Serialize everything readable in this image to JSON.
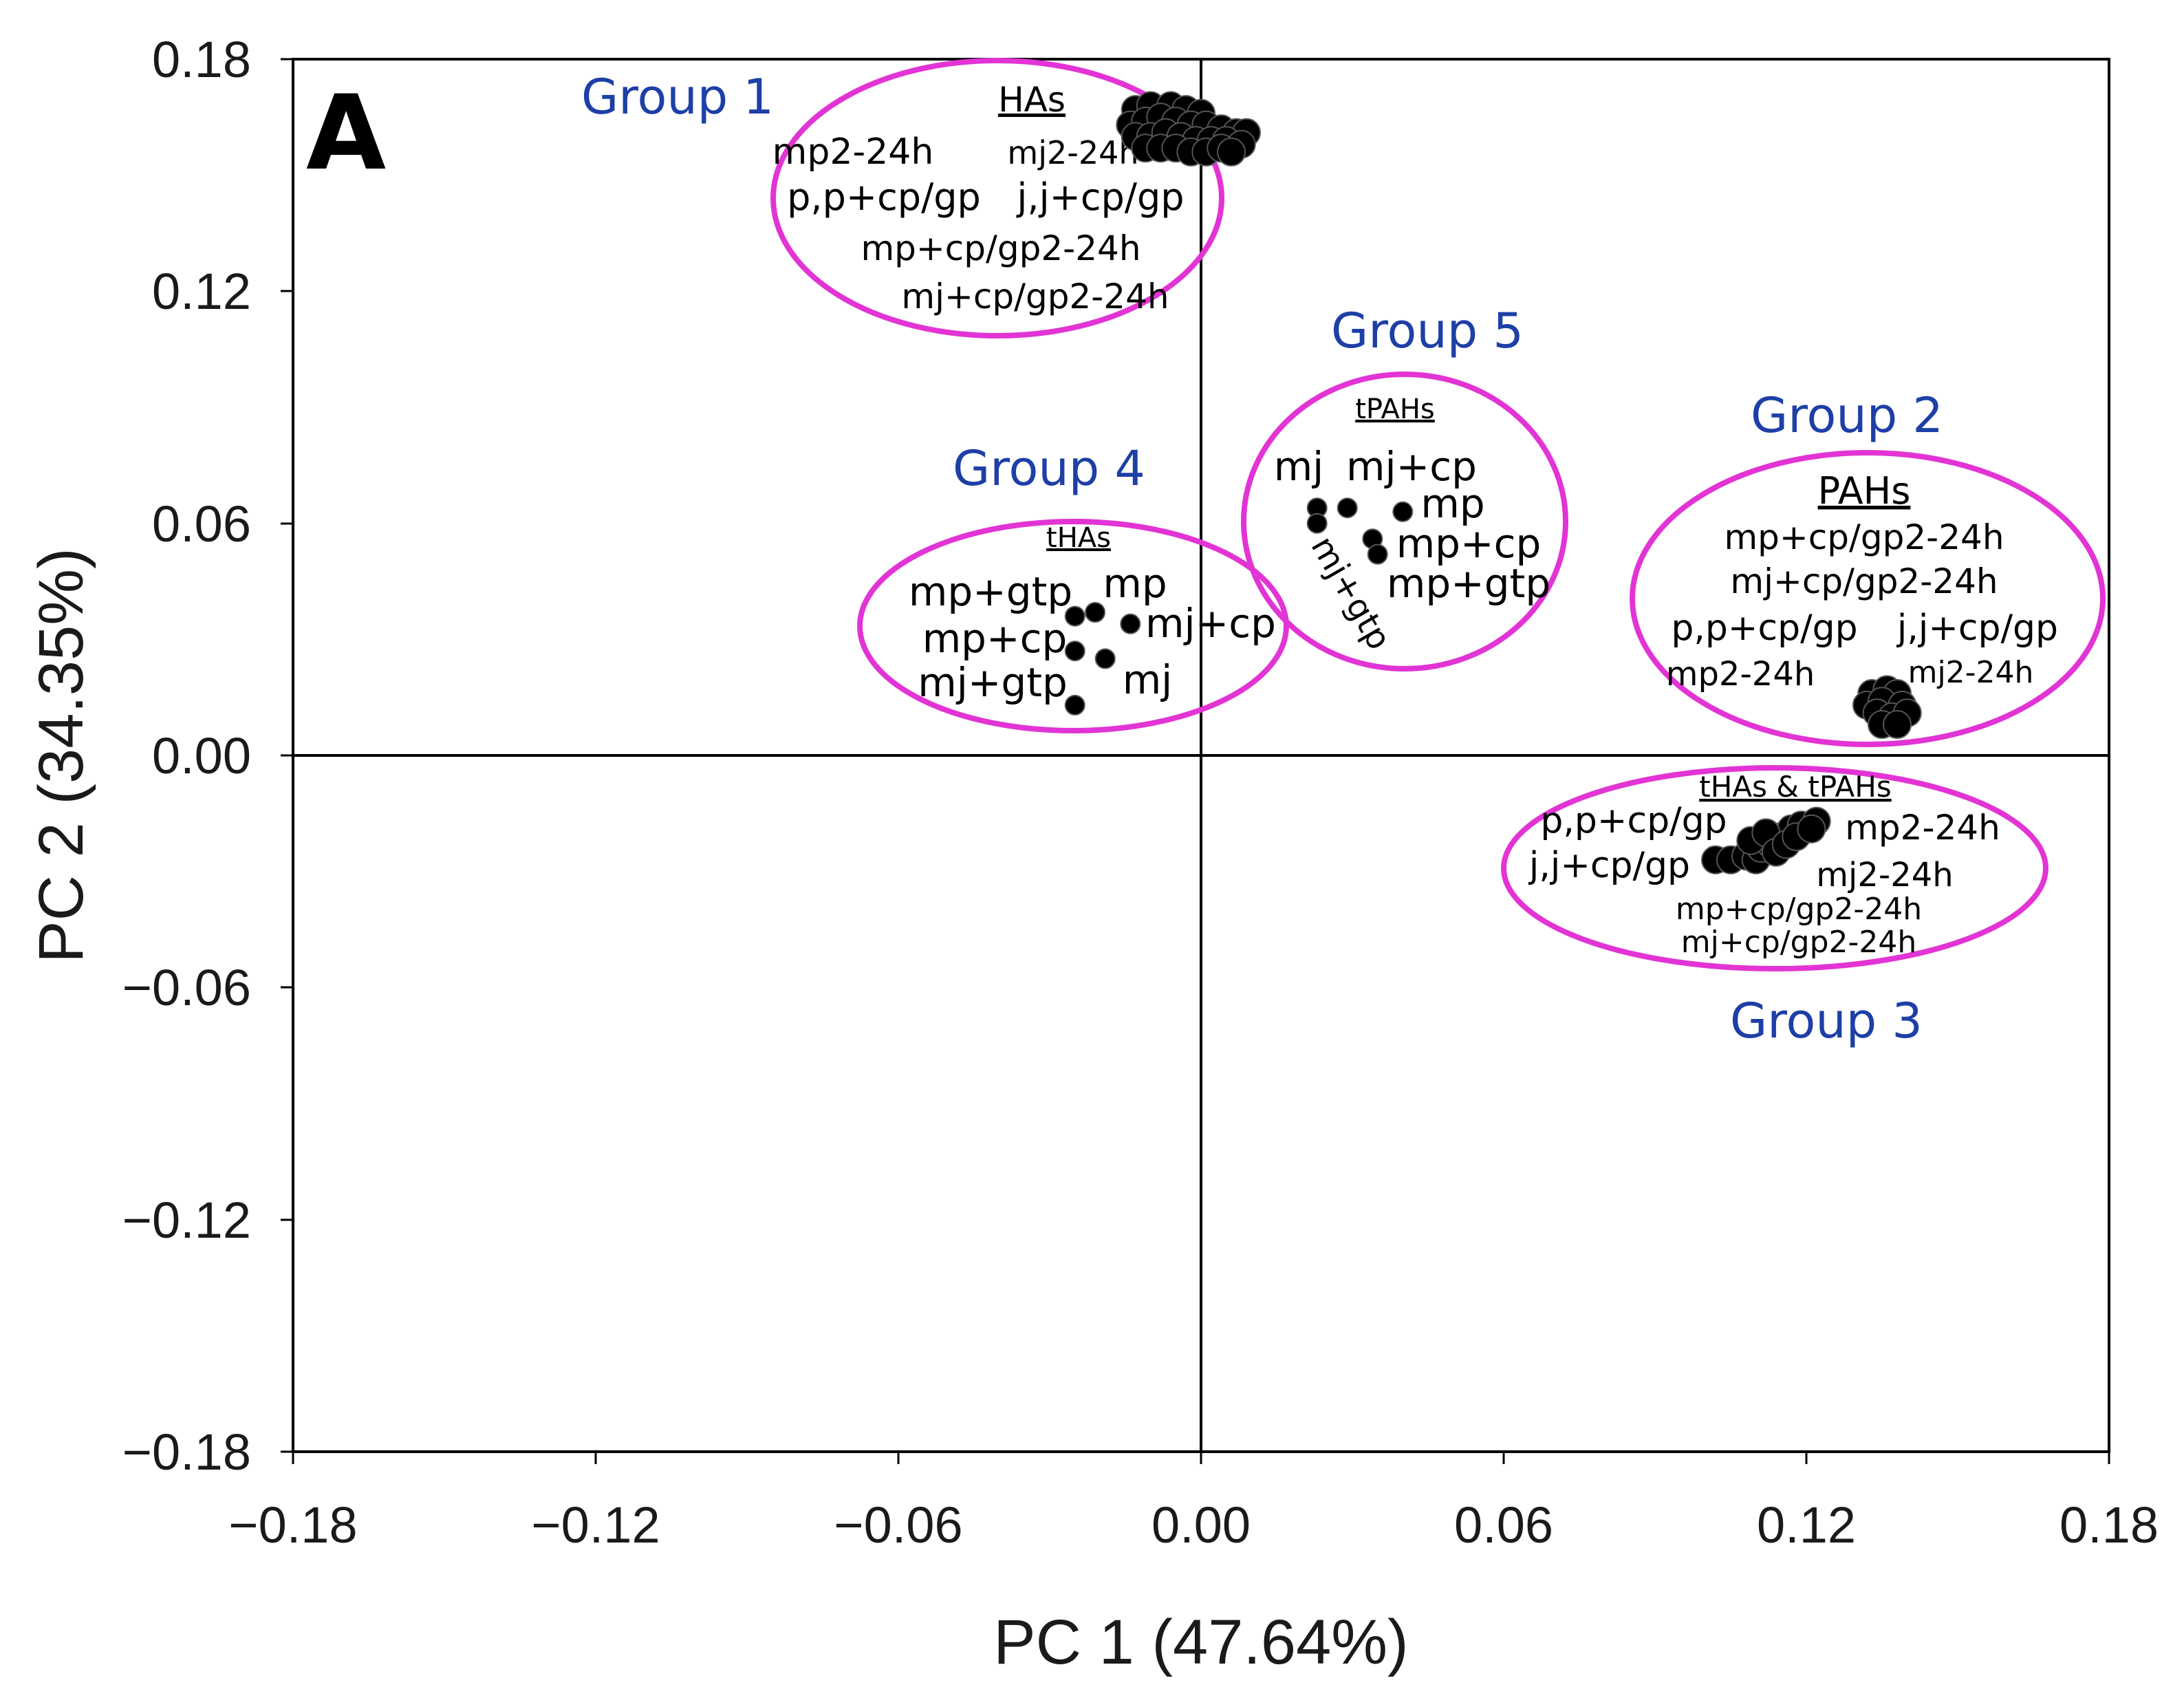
{
  "colors": {
    "ellipse": "#e234d4",
    "group_title": "#1d3fa6",
    "point": "#000000",
    "axis": "#000000"
  },
  "chart_data": {
    "type": "scatter",
    "panel_label": "A",
    "xlabel": "PC 1 (47.64%)",
    "ylabel": "PC 2 (34.35%)",
    "xlim": [
      -0.18,
      0.18
    ],
    "ylim": [
      -0.18,
      0.18
    ],
    "xticks": [
      "-0.18",
      "-0.12",
      "-0.06",
      "0.00",
      "0.06",
      "0.12",
      "0.18"
    ],
    "yticks": [
      "0.18",
      "0.12",
      "0.06",
      "0.00",
      "-0.06",
      "-0.12",
      "-0.18"
    ],
    "grid": false,
    "zero_lines": true,
    "groups": [
      {
        "title": "Group 1",
        "compound_class": "HAs",
        "labels": [
          "mp2-24h",
          "mj2-24h",
          "p,p+cp/gp",
          "j,j+cp/gp",
          "mp+cp/gp2-24h",
          "mj+cp/gp2-24h"
        ],
        "points": [
          [
            -0.013,
            0.167
          ],
          [
            -0.01,
            0.168
          ],
          [
            -0.006,
            0.168
          ],
          [
            -0.003,
            0.167
          ],
          [
            0.0,
            0.166
          ],
          [
            -0.014,
            0.163
          ],
          [
            -0.011,
            0.164
          ],
          [
            -0.008,
            0.165
          ],
          [
            -0.005,
            0.164
          ],
          [
            -0.002,
            0.163
          ],
          [
            0.001,
            0.163
          ],
          [
            0.004,
            0.162
          ],
          [
            0.007,
            0.161
          ],
          [
            0.009,
            0.161
          ],
          [
            -0.013,
            0.16
          ],
          [
            -0.01,
            0.16
          ],
          [
            -0.007,
            0.161
          ],
          [
            -0.004,
            0.16
          ],
          [
            -0.001,
            0.159
          ],
          [
            0.002,
            0.159
          ],
          [
            0.005,
            0.159
          ],
          [
            0.008,
            0.158
          ],
          [
            -0.011,
            0.157
          ],
          [
            -0.008,
            0.157
          ],
          [
            -0.005,
            0.157
          ],
          [
            -0.002,
            0.156
          ],
          [
            0.001,
            0.156
          ],
          [
            0.004,
            0.157
          ],
          [
            0.006,
            0.156
          ]
        ]
      },
      {
        "title": "Group 2",
        "compound_class": "PAHs",
        "labels": [
          "mp+cp/gp2-24h",
          "mj+cp/gp2-24h",
          "p,p+cp/gp",
          "j,j+cp/gp",
          "mp2-24h",
          "mj2-24h"
        ],
        "points": [
          [
            0.133,
            0.016
          ],
          [
            0.136,
            0.017
          ],
          [
            0.138,
            0.016
          ],
          [
            0.132,
            0.013
          ],
          [
            0.135,
            0.014
          ],
          [
            0.139,
            0.013
          ],
          [
            0.134,
            0.011
          ],
          [
            0.137,
            0.01
          ],
          [
            0.14,
            0.011
          ],
          [
            0.135,
            0.008
          ],
          [
            0.138,
            0.008
          ]
        ]
      },
      {
        "title": "Group 3",
        "compound_class": "tHAs & tPAHs",
        "labels": [
          "p,p+cp/gp",
          "mp2-24h",
          "j,j+cp/gp",
          "mj2-24h",
          "mp+cp/gp2-24h",
          "mj+cp/gp2-24h"
        ],
        "points": [
          [
            0.102,
            -0.027
          ],
          [
            0.105,
            -0.027
          ],
          [
            0.108,
            -0.026
          ],
          [
            0.11,
            -0.027
          ],
          [
            0.111,
            -0.024
          ],
          [
            0.113,
            -0.023
          ],
          [
            0.115,
            -0.021
          ],
          [
            0.117,
            -0.019
          ],
          [
            0.119,
            -0.018
          ],
          [
            0.122,
            -0.017
          ],
          [
            0.109,
            -0.022
          ],
          [
            0.112,
            -0.02
          ],
          [
            0.114,
            -0.025
          ],
          [
            0.116,
            -0.023
          ],
          [
            0.118,
            -0.021
          ],
          [
            0.121,
            -0.019
          ]
        ]
      },
      {
        "title": "Group 4",
        "compound_class": "tHAs",
        "labels": [
          "mp+gtp",
          "mp",
          "mp+cp",
          "mj+cp",
          "mj+gtp",
          "mj"
        ],
        "points": [
          [
            -0.025,
            0.036
          ],
          [
            -0.021,
            0.037
          ],
          [
            -0.014,
            0.034
          ],
          [
            -0.025,
            0.027
          ],
          [
            -0.019,
            0.025
          ],
          [
            -0.025,
            0.013
          ]
        ]
      },
      {
        "title": "Group 5",
        "compound_class": "tPAHs",
        "labels": [
          "mj",
          "mj+cp",
          "mp",
          "mp+cp",
          "mp+gtp",
          "mj+gtp"
        ],
        "points": [
          [
            0.023,
            0.064
          ],
          [
            0.029,
            0.064
          ],
          [
            0.04,
            0.063
          ],
          [
            0.023,
            0.06
          ],
          [
            0.034,
            0.056
          ],
          [
            0.035,
            0.052
          ]
        ]
      }
    ]
  }
}
